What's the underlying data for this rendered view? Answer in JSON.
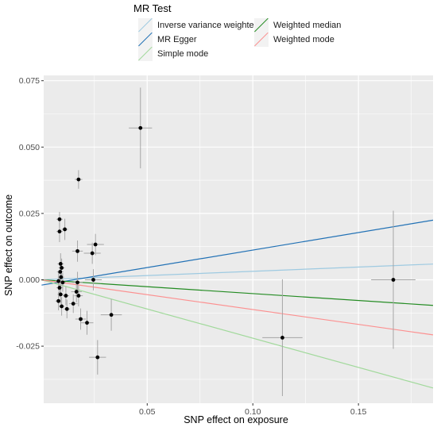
{
  "chart_data": {
    "type": "scatter",
    "title": "",
    "xlabel": "SNP effect on exposure",
    "ylabel": "SNP effect on outcome",
    "xlim": [
      0.001,
      0.1853
    ],
    "ylim": [
      -0.0465,
      0.077
    ],
    "x_ticks": [
      0.05,
      0.1,
      0.15
    ],
    "x_tick_labels": [
      "0.05",
      "0.10",
      "0.15"
    ],
    "y_ticks": [
      -0.025,
      0.0,
      0.025,
      0.05,
      0.075
    ],
    "y_tick_labels": [
      "-0.025",
      "0.000",
      "0.025",
      "0.050",
      "0.075"
    ],
    "grid": true,
    "legend": {
      "title": "MR Test",
      "position": "top",
      "entries": [
        {
          "label": "Inverse variance weighted",
          "color": "#9ecae1"
        },
        {
          "label": "MR Egger",
          "color": "#2171b5"
        },
        {
          "label": "Simple mode",
          "color": "#a1d99b"
        },
        {
          "label": "Weighted median",
          "color": "#238b22"
        },
        {
          "label": "Weighted mode",
          "color": "#fc9090"
        }
      ]
    },
    "lines": [
      {
        "name": "Inverse variance weighted",
        "color": "#9ecae1",
        "intercept": 0.0,
        "slope": 0.032
      },
      {
        "name": "MR Egger",
        "color": "#2171b5",
        "intercept": -0.002,
        "slope": 0.132
      },
      {
        "name": "Simple mode",
        "color": "#a1d99b",
        "intercept": 0.0,
        "slope": -0.22
      },
      {
        "name": "Weighted median",
        "color": "#238b22",
        "intercept": 0.0,
        "slope": -0.052
      },
      {
        "name": "Weighted mode",
        "color": "#fc9090",
        "intercept": 0.0,
        "slope": -0.112
      }
    ],
    "points": [
      {
        "x": 0.0468,
        "y": 0.0572,
        "se_x": 0.0055,
        "se_y": 0.0152
      },
      {
        "x": 0.0175,
        "y": 0.0378,
        "se_x": 0.0018,
        "se_y": 0.0035
      },
      {
        "x": 0.0085,
        "y": 0.0228,
        "se_x": 0.0015,
        "se_y": 0.0028
      },
      {
        "x": 0.0085,
        "y": 0.0182,
        "se_x": 0.0015,
        "se_y": 0.004
      },
      {
        "x": 0.011,
        "y": 0.019,
        "se_x": 0.0015,
        "se_y": 0.004
      },
      {
        "x": 0.0255,
        "y": 0.0133,
        "se_x": 0.004,
        "se_y": 0.004
      },
      {
        "x": 0.024,
        "y": 0.01,
        "se_x": 0.004,
        "se_y": 0.004
      },
      {
        "x": 0.017,
        "y": 0.0108,
        "se_x": 0.0025,
        "se_y": 0.004
      },
      {
        "x": 0.009,
        "y": 0.006,
        "se_x": 0.0015,
        "se_y": 0.004
      },
      {
        "x": 0.0095,
        "y": 0.0045,
        "se_x": 0.0015,
        "se_y": 0.0035
      },
      {
        "x": 0.0088,
        "y": 0.003,
        "se_x": 0.0015,
        "se_y": 0.0035
      },
      {
        "x": 0.0092,
        "y": 0.001,
        "se_x": 0.0015,
        "se_y": 0.0035
      },
      {
        "x": 0.008,
        "y": -0.0005,
        "se_x": 0.0015,
        "se_y": 0.0035
      },
      {
        "x": 0.01,
        "y": -0.001,
        "se_x": 0.0015,
        "se_y": 0.0035
      },
      {
        "x": 0.0085,
        "y": -0.003,
        "se_x": 0.0015,
        "se_y": 0.0035
      },
      {
        "x": 0.009,
        "y": -0.0055,
        "se_x": 0.0015,
        "se_y": 0.0035
      },
      {
        "x": 0.008,
        "y": -0.008,
        "se_x": 0.0015,
        "se_y": 0.0035
      },
      {
        "x": 0.0095,
        "y": -0.01,
        "se_x": 0.0015,
        "se_y": 0.0035
      },
      {
        "x": 0.0115,
        "y": -0.006,
        "se_x": 0.0015,
        "se_y": 0.0035
      },
      {
        "x": 0.015,
        "y": -0.009,
        "se_x": 0.002,
        "se_y": 0.0035
      },
      {
        "x": 0.012,
        "y": -0.011,
        "se_x": 0.0015,
        "se_y": 0.0035
      },
      {
        "x": 0.017,
        "y": -0.001,
        "se_x": 0.0025,
        "se_y": 0.004
      },
      {
        "x": 0.0245,
        "y": 0.0,
        "se_x": 0.004,
        "se_y": 0.004
      },
      {
        "x": 0.0165,
        "y": -0.0045,
        "se_x": 0.0025,
        "se_y": 0.004
      },
      {
        "x": 0.0175,
        "y": -0.006,
        "se_x": 0.002,
        "se_y": 0.004
      },
      {
        "x": 0.0185,
        "y": -0.0148,
        "se_x": 0.0025,
        "se_y": 0.004
      },
      {
        "x": 0.0215,
        "y": -0.0162,
        "se_x": 0.003,
        "se_y": 0.0045
      },
      {
        "x": 0.033,
        "y": -0.0132,
        "se_x": 0.005,
        "se_y": 0.006
      },
      {
        "x": 0.0265,
        "y": -0.0292,
        "se_x": 0.004,
        "se_y": 0.0065
      },
      {
        "x": 0.114,
        "y": -0.0218,
        "se_x": 0.0095,
        "se_y": 0.022
      },
      {
        "x": 0.1665,
        "y": 0.0,
        "se_x": 0.0105,
        "se_y": 0.026
      }
    ]
  }
}
